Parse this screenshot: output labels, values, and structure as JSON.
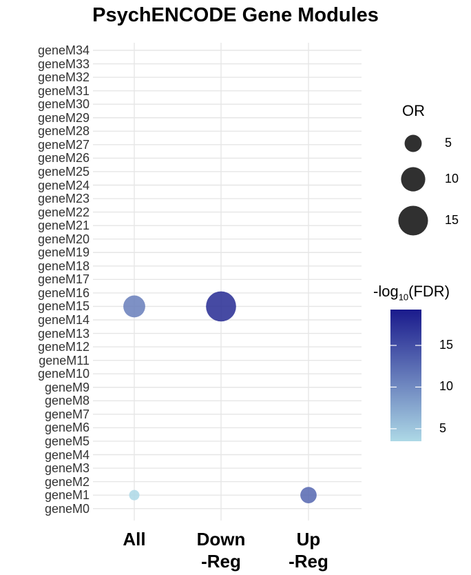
{
  "chart_data": {
    "type": "scatter",
    "title": "PsychENCODE Gene Modules",
    "xlabel": "",
    "ylabel": "",
    "categories_x": [
      "All",
      "Down\n-Reg",
      "Up\n-Reg"
    ],
    "categories_y": [
      "geneM34",
      "geneM33",
      "geneM32",
      "geneM31",
      "geneM30",
      "geneM29",
      "geneM28",
      "geneM27",
      "geneM26",
      "geneM25",
      "geneM24",
      "geneM23",
      "geneM22",
      "geneM21",
      "geneM20",
      "geneM19",
      "geneM18",
      "geneM17",
      "geneM16",
      "geneM15",
      "geneM14",
      "geneM13",
      "geneM12",
      "geneM11",
      "geneM10",
      "geneM9",
      "geneM8",
      "geneM7",
      "geneM6",
      "geneM5",
      "geneM4",
      "geneM3",
      "geneM2",
      "geneM1",
      "geneM0"
    ],
    "points": [
      {
        "x": "All",
        "y": "geneM15",
        "OR": 9,
        "neg_log10_FDR": 11
      },
      {
        "x": "Down\n-Reg",
        "y": "geneM15",
        "OR": 17,
        "neg_log10_FDR": 18
      },
      {
        "x": "All",
        "y": "geneM1",
        "OR": 2,
        "neg_log10_FDR": 3.5
      },
      {
        "x": "Up\n-Reg",
        "y": "geneM1",
        "OR": 5,
        "neg_log10_FDR": 13
      }
    ],
    "size_legend": {
      "title": "OR",
      "values": [
        5,
        10,
        15
      ]
    },
    "color_legend": {
      "title_prefix": "-log",
      "title_sub": "10",
      "title_suffix": "(FDR)",
      "ticks": [
        5,
        10,
        15
      ],
      "range": [
        3.5,
        19.3
      ],
      "low_color": "#add8e6",
      "high_color": "#1a1a8c"
    },
    "grid": true,
    "legend_position": "right"
  }
}
